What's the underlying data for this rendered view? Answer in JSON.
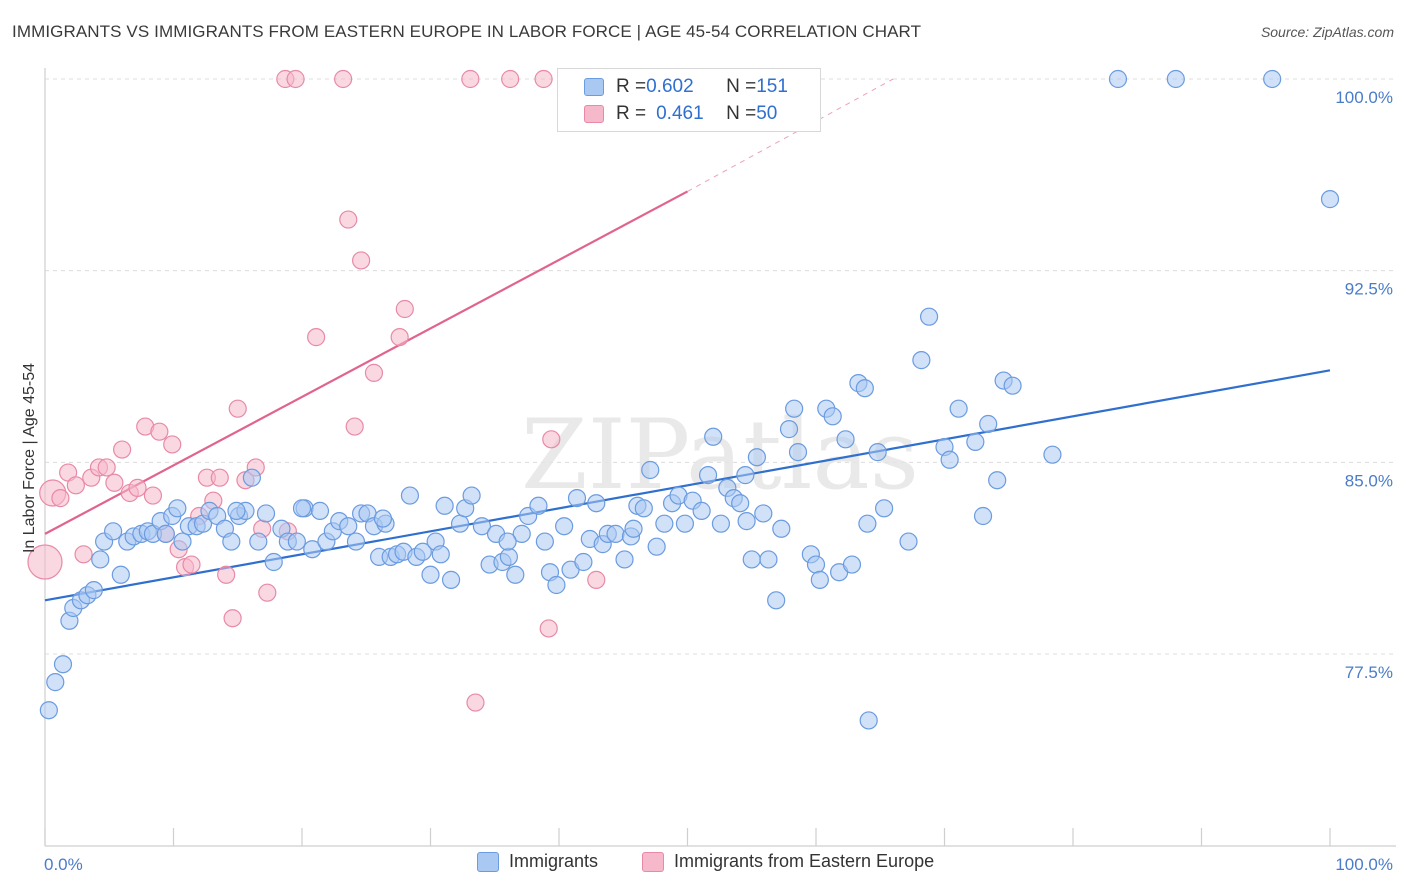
{
  "title": "IMMIGRANTS VS IMMIGRANTS FROM EASTERN EUROPE IN LABOR FORCE | AGE 45-54 CORRELATION CHART",
  "source": "Source: ZipAtlas.com",
  "watermark": "ZIPatlas",
  "colors": {
    "blue_fill": "#a9c8f2",
    "blue_stroke": "#6b9be0",
    "blue_line": "#2f6fce",
    "pink_fill": "#f6b8cb",
    "pink_stroke": "#e88aa7",
    "pink_line": "#e0648c",
    "axis_label": "#4a7cc9"
  },
  "legend": {
    "rows": [
      {
        "r_label": "R = ",
        "r_value": "0.602",
        "n_label": "N = ",
        "n_value": "151"
      },
      {
        "r_label": "R = ",
        "r_value": "0.461",
        "n_label": "N = ",
        "n_value": "50"
      }
    ]
  },
  "bottom_legend": {
    "items": [
      "Immigrants",
      "Immigrants from Eastern Europe"
    ]
  },
  "chart_data": {
    "type": "scatter",
    "ylabel": "In Labor Force | Age 45-54",
    "xlabel": "",
    "xlim": [
      0,
      100
    ],
    "ylim": [
      71.5,
      101
    ],
    "x_tick_labels": [
      "0.0%",
      "100.0%"
    ],
    "y_ticks": [
      77.5,
      85.0,
      92.5,
      100.0
    ],
    "y_tick_labels": [
      "77.5%",
      "85.0%",
      "92.5%",
      "100.0%"
    ],
    "grid": "horizontal dashed",
    "legend_position": "top-center",
    "series": [
      {
        "name": "Immigrants",
        "r": 0.602,
        "n": 151,
        "trend": {
          "x0": 0,
          "y0": 79.6,
          "x1": 100,
          "y1": 88.6
        },
        "points": [
          [
            0.3,
            75.3
          ],
          [
            0.8,
            76.4
          ],
          [
            1.4,
            77.1
          ],
          [
            1.9,
            78.8
          ],
          [
            2.2,
            79.3
          ],
          [
            2.8,
            79.6
          ],
          [
            3.3,
            79.8
          ],
          [
            3.8,
            80.0
          ],
          [
            4.3,
            81.2
          ],
          [
            4.6,
            81.9
          ],
          [
            5.3,
            82.3
          ],
          [
            5.9,
            80.6
          ],
          [
            6.4,
            81.9
          ],
          [
            6.9,
            82.1
          ],
          [
            7.5,
            82.2
          ],
          [
            8.0,
            82.3
          ],
          [
            8.4,
            82.2
          ],
          [
            9.0,
            82.7
          ],
          [
            9.4,
            82.2
          ],
          [
            9.9,
            82.9
          ],
          [
            10.3,
            83.2
          ],
          [
            10.7,
            81.9
          ],
          [
            11.2,
            82.5
          ],
          [
            11.8,
            82.5
          ],
          [
            12.3,
            82.6
          ],
          [
            12.8,
            83.1
          ],
          [
            13.4,
            82.9
          ],
          [
            14.0,
            82.4
          ],
          [
            14.5,
            81.9
          ],
          [
            15.1,
            82.9
          ],
          [
            15.6,
            83.1
          ],
          [
            16.1,
            84.4
          ],
          [
            16.6,
            81.9
          ],
          [
            17.2,
            83.0
          ],
          [
            17.8,
            81.1
          ],
          [
            18.4,
            82.4
          ],
          [
            18.9,
            81.9
          ],
          [
            19.6,
            81.9
          ],
          [
            20.2,
            83.2
          ],
          [
            20.8,
            81.6
          ],
          [
            21.4,
            83.1
          ],
          [
            21.9,
            81.9
          ],
          [
            22.4,
            82.3
          ],
          [
            22.9,
            82.7
          ],
          [
            23.6,
            82.5
          ],
          [
            24.2,
            81.9
          ],
          [
            24.6,
            83.0
          ],
          [
            25.1,
            83.0
          ],
          [
            25.6,
            82.5
          ],
          [
            26.0,
            81.3
          ],
          [
            26.5,
            82.6
          ],
          [
            26.9,
            81.3
          ],
          [
            27.4,
            81.4
          ],
          [
            27.9,
            81.5
          ],
          [
            28.4,
            83.7
          ],
          [
            28.9,
            81.3
          ],
          [
            29.4,
            81.5
          ],
          [
            30.0,
            80.6
          ],
          [
            30.4,
            81.9
          ],
          [
            31.1,
            83.3
          ],
          [
            31.6,
            80.4
          ],
          [
            32.3,
            82.6
          ],
          [
            32.7,
            83.2
          ],
          [
            33.2,
            83.7
          ],
          [
            34.0,
            82.5
          ],
          [
            34.6,
            81.0
          ],
          [
            35.1,
            82.2
          ],
          [
            35.6,
            81.1
          ],
          [
            36.1,
            81.3
          ],
          [
            36.6,
            80.6
          ],
          [
            37.1,
            82.2
          ],
          [
            37.6,
            82.9
          ],
          [
            38.4,
            83.3
          ],
          [
            38.9,
            81.9
          ],
          [
            39.3,
            80.7
          ],
          [
            39.8,
            80.2
          ],
          [
            40.4,
            82.5
          ],
          [
            40.9,
            80.8
          ],
          [
            41.4,
            83.6
          ],
          [
            41.9,
            81.1
          ],
          [
            42.4,
            82.0
          ],
          [
            42.9,
            83.4
          ],
          [
            43.4,
            81.8
          ],
          [
            43.8,
            82.2
          ],
          [
            44.4,
            82.2
          ],
          [
            45.1,
            81.2
          ],
          [
            45.6,
            82.1
          ],
          [
            46.1,
            83.3
          ],
          [
            46.6,
            83.2
          ],
          [
            47.1,
            84.7
          ],
          [
            47.6,
            81.7
          ],
          [
            48.2,
            82.6
          ],
          [
            48.8,
            83.4
          ],
          [
            49.3,
            83.7
          ],
          [
            49.8,
            82.6
          ],
          [
            50.4,
            83.5
          ],
          [
            51.1,
            83.1
          ],
          [
            51.6,
            84.5
          ],
          [
            52.0,
            86.0
          ],
          [
            52.6,
            82.6
          ],
          [
            53.1,
            84.0
          ],
          [
            53.6,
            83.6
          ],
          [
            54.1,
            83.4
          ],
          [
            54.6,
            82.7
          ],
          [
            55.0,
            81.2
          ],
          [
            55.4,
            85.2
          ],
          [
            55.9,
            83.0
          ],
          [
            56.3,
            81.2
          ],
          [
            56.9,
            79.6
          ],
          [
            57.3,
            82.4
          ],
          [
            57.9,
            86.3
          ],
          [
            58.3,
            87.1
          ],
          [
            58.6,
            85.4
          ],
          [
            59.6,
            81.4
          ],
          [
            60.0,
            81.0
          ],
          [
            60.3,
            80.4
          ],
          [
            60.8,
            87.1
          ],
          [
            61.3,
            86.8
          ],
          [
            61.8,
            80.7
          ],
          [
            62.3,
            85.9
          ],
          [
            62.8,
            81.0
          ],
          [
            63.3,
            88.1
          ],
          [
            63.8,
            87.9
          ],
          [
            64.0,
            82.6
          ],
          [
            64.8,
            85.4
          ],
          [
            65.3,
            83.2
          ],
          [
            67.2,
            81.9
          ],
          [
            68.2,
            89.0
          ],
          [
            68.8,
            90.7
          ],
          [
            70.0,
            85.6
          ],
          [
            70.4,
            85.1
          ],
          [
            71.1,
            87.1
          ],
          [
            72.4,
            85.8
          ],
          [
            73.0,
            82.9
          ],
          [
            73.4,
            86.5
          ],
          [
            74.1,
            84.3
          ],
          [
            74.6,
            88.2
          ],
          [
            75.3,
            88.0
          ],
          [
            78.4,
            85.3
          ],
          [
            83.5,
            100.0
          ],
          [
            88.0,
            100.0
          ],
          [
            95.5,
            100.0
          ],
          [
            100.0,
            95.3
          ],
          [
            54.5,
            84.5
          ],
          [
            64.1,
            74.9
          ],
          [
            36.0,
            81.9
          ],
          [
            20.0,
            83.2
          ],
          [
            45.8,
            82.4
          ],
          [
            30.8,
            81.4
          ],
          [
            26.3,
            82.8
          ],
          [
            14.9,
            83.1
          ]
        ]
      },
      {
        "name": "Immigrants from Eastern Europe",
        "r": 0.461,
        "n": 50,
        "trend": {
          "x0": 0,
          "y0": 82.2,
          "x1": 50,
          "y1": 95.6,
          "dashed_to_x": 66,
          "dashed_to_y": 100.0
        },
        "points": [
          [
            0.0,
            81.1
          ],
          [
            0.6,
            83.8
          ],
          [
            1.2,
            83.6
          ],
          [
            1.8,
            84.6
          ],
          [
            2.4,
            84.1
          ],
          [
            3.0,
            81.4
          ],
          [
            3.6,
            84.4
          ],
          [
            4.2,
            84.8
          ],
          [
            4.8,
            84.8
          ],
          [
            5.4,
            84.2
          ],
          [
            6.0,
            85.5
          ],
          [
            6.6,
            83.8
          ],
          [
            7.2,
            84.0
          ],
          [
            7.8,
            86.4
          ],
          [
            8.4,
            83.7
          ],
          [
            8.9,
            86.2
          ],
          [
            9.4,
            82.2
          ],
          [
            9.9,
            85.7
          ],
          [
            10.4,
            81.6
          ],
          [
            10.9,
            80.9
          ],
          [
            11.4,
            81.0
          ],
          [
            12.0,
            82.9
          ],
          [
            12.6,
            84.4
          ],
          [
            13.1,
            83.5
          ],
          [
            13.6,
            84.4
          ],
          [
            14.1,
            80.6
          ],
          [
            14.6,
            78.9
          ],
          [
            15.0,
            87.1
          ],
          [
            15.6,
            84.3
          ],
          [
            16.4,
            84.8
          ],
          [
            16.9,
            82.4
          ],
          [
            17.3,
            79.9
          ],
          [
            18.9,
            82.3
          ],
          [
            21.1,
            89.9
          ],
          [
            23.6,
            94.5
          ],
          [
            24.1,
            86.4
          ],
          [
            24.6,
            92.9
          ],
          [
            25.6,
            88.5
          ],
          [
            27.6,
            89.9
          ],
          [
            28.0,
            91.0
          ],
          [
            18.7,
            100.0
          ],
          [
            19.5,
            100.0
          ],
          [
            23.2,
            100.0
          ],
          [
            33.1,
            100.0
          ],
          [
            36.2,
            100.0
          ],
          [
            38.8,
            100.0
          ],
          [
            33.5,
            75.6
          ],
          [
            39.2,
            78.5
          ],
          [
            39.4,
            85.9
          ],
          [
            42.9,
            80.4
          ]
        ]
      }
    ]
  }
}
